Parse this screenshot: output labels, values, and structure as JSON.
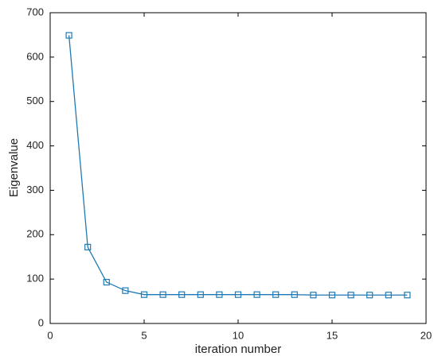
{
  "chart_data": {
    "type": "line",
    "x_label": "iteration number",
    "y_label": "Eigenvalue",
    "x": [
      1,
      2,
      3,
      4,
      5,
      6,
      7,
      8,
      9,
      10,
      11,
      12,
      13,
      14,
      15,
      16,
      17,
      18,
      19
    ],
    "series": [
      {
        "color": "#1f7ab4",
        "values": [
          649,
          172,
          93,
          74,
          65,
          65,
          65,
          65,
          65,
          65,
          65,
          65,
          65,
          64,
          64,
          64,
          64,
          64,
          64
        ]
      }
    ],
    "xlim": [
      0,
      20
    ],
    "xticks": [
      0,
      5,
      10,
      15,
      20
    ],
    "ylim": [
      0,
      700
    ],
    "yticks": [
      0,
      100,
      200,
      300,
      400,
      500,
      600,
      700
    ],
    "grid": false
  }
}
